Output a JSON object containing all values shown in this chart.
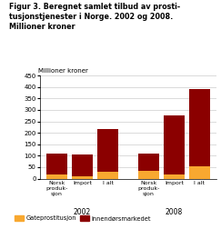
{
  "title_line1": "Figur 3. Beregnet samlet tilbud av prosti-",
  "title_line2": "tusjonstjenester i Norge. 2002 og 2008.",
  "title_line3": "Millioner kroner",
  "ylabel": "Millioner kroner",
  "ylim": [
    0,
    450
  ],
  "yticks": [
    0,
    50,
    100,
    150,
    200,
    250,
    300,
    350,
    400,
    450
  ],
  "groups": [
    "2002",
    "2008"
  ],
  "categories": [
    "Norsk\nproduk-\nsjon",
    "Import",
    "I alt",
    "Norsk\nproduk-\nsjon",
    "Import",
    "I alt"
  ],
  "gate_color": "#F8A830",
  "indoor_color": "#8B0000",
  "gate_values": [
    20,
    10,
    30,
    35,
    20,
    55
  ],
  "indoor_values": [
    90,
    95,
    185,
    75,
    255,
    335
  ],
  "group_centers": [
    1,
    4
  ],
  "group_labels": [
    "2002",
    "2008"
  ],
  "legend_gate": "Gateprostitusjon",
  "legend_indoor": "Innendørsmarkedet",
  "background_color": "#ffffff",
  "grid_color": "#cccccc"
}
